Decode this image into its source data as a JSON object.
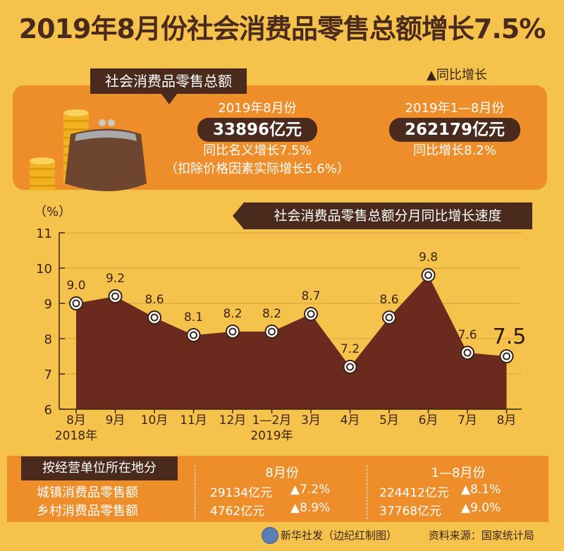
{
  "title": "2019年8月份社会消费品零售总额增长7.5%",
  "legend_note": "▲同比增长",
  "retail_total": {
    "label": "社会消费品零售总额",
    "monthly": {
      "period": "2019年8月份",
      "value": "33896亿元",
      "nominal_growth": "同比名义增长7.5%",
      "real_growth": "（扣除价格因素实际增长5.6%）"
    },
    "ytd": {
      "period": "2019年1—8月份",
      "value": "262179亿元",
      "growth": "同比增长8.2%"
    }
  },
  "chart_data": {
    "type": "area",
    "title": "社会消费品零售总额分月同比增长速度",
    "y_unit": "（%）",
    "categories": [
      "8月",
      "9月",
      "10月",
      "11月",
      "12月",
      "1—2月",
      "3月",
      "4月",
      "5月",
      "6月",
      "7月",
      "8月"
    ],
    "year_labels": [
      "2018年",
      "2019年"
    ],
    "values": [
      9.0,
      9.2,
      8.6,
      8.1,
      8.2,
      8.2,
      8.7,
      7.2,
      8.6,
      9.8,
      7.6,
      7.5
    ],
    "value_labels": [
      "9.0",
      "9.2",
      "8.6",
      "8.1",
      "8.2",
      "8.2",
      "8.7",
      "7.2",
      "8.6",
      "9.8",
      "7.6",
      "7.5"
    ],
    "yticks": [
      "11",
      "10",
      "9",
      "8",
      "7",
      "6"
    ],
    "ylim": [
      6,
      11
    ],
    "fill_color": "#6B2A1E",
    "highlight_last": true
  },
  "by_location": {
    "label": "按经营单位所在地分",
    "col_monthly": "8月份",
    "col_ytd": "1—8月份",
    "rows": [
      {
        "name": "城镇消费品零售额",
        "m_value": "29134亿元",
        "m_growth": "▲7.2%",
        "y_value": "224412亿元",
        "y_growth": "▲8.1%"
      },
      {
        "name": "乡村消费品零售额",
        "m_value": "4762亿元",
        "m_growth": "▲8.9%",
        "y_value": "37768亿元",
        "y_growth": "▲9.0%"
      }
    ]
  },
  "footer": {
    "credit": "新华社发（边纪红制图）",
    "source": "资料来源：国家统计局"
  },
  "colors": {
    "background": "#F5C34B",
    "panel": "#EE8E2B",
    "dark": "#4A2A1C"
  }
}
